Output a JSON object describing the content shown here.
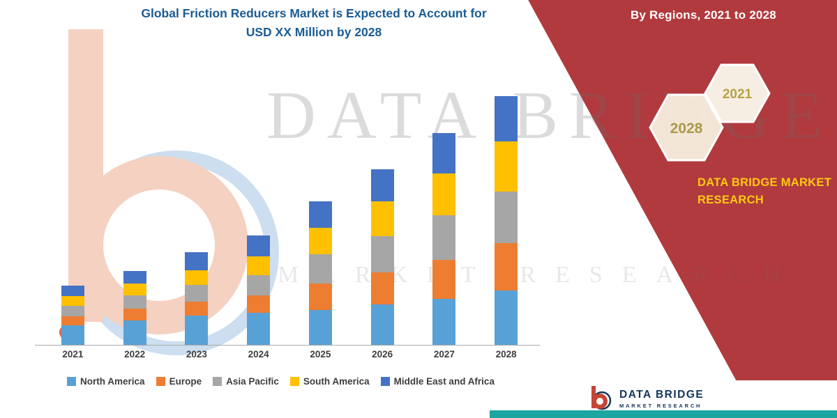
{
  "title": {
    "line1": "Global Friction Reducers Market is Expected to Account for",
    "line2": "USD XX Million by 2028",
    "color": "#1A5C94"
  },
  "banner": {
    "color": "#B13A3E",
    "region_label": "By Regions, 2021 to 2028",
    "hexagon_back_label": "2028",
    "hexagon_front_label": "2021",
    "brand_line1": "DATA BRIDGE MARKET",
    "brand_line2": "RESEARCH",
    "brand_color": "#FFC913"
  },
  "watermark": {
    "line1": "DATA BRIDGE",
    "line2": "MARKET RESEARCH"
  },
  "footer": {
    "logo_text": "DATA BRIDGE",
    "logo_subtext": "MARKET RESEARCH",
    "teal_color": "#1BA6A0"
  },
  "chart_data": {
    "type": "bar",
    "stacked": true,
    "title": "Global Friction Reducers Market is Expected to Account for USD XX Million by 2028",
    "xlabel": "",
    "ylabel": "",
    "grid": false,
    "y_axis_labels_visible": false,
    "legend_position": "bottom",
    "ylim": [
      0,
      380
    ],
    "categories": [
      "2021",
      "2022",
      "2023",
      "2024",
      "2025",
      "2026",
      "2027",
      "2028"
    ],
    "series": [
      {
        "name": "North America",
        "color": "#58A1D6",
        "values": [
          28,
          35,
          42,
          46,
          50,
          58,
          66,
          78
        ]
      },
      {
        "name": "Europe",
        "color": "#ED7D31",
        "values": [
          13,
          17,
          20,
          25,
          38,
          46,
          56,
          68
        ]
      },
      {
        "name": "Asia Pacific",
        "color": "#A6A6A6",
        "values": [
          15,
          19,
          24,
          29,
          42,
          52,
          64,
          74
        ]
      },
      {
        "name": "South America",
        "color": "#FFC000",
        "values": [
          14,
          17,
          21,
          27,
          38,
          50,
          60,
          72
        ]
      },
      {
        "name": "Middle East and Africa",
        "color": "#4472C4",
        "values": [
          15,
          18,
          26,
          30,
          38,
          46,
          58,
          65
        ]
      }
    ]
  }
}
